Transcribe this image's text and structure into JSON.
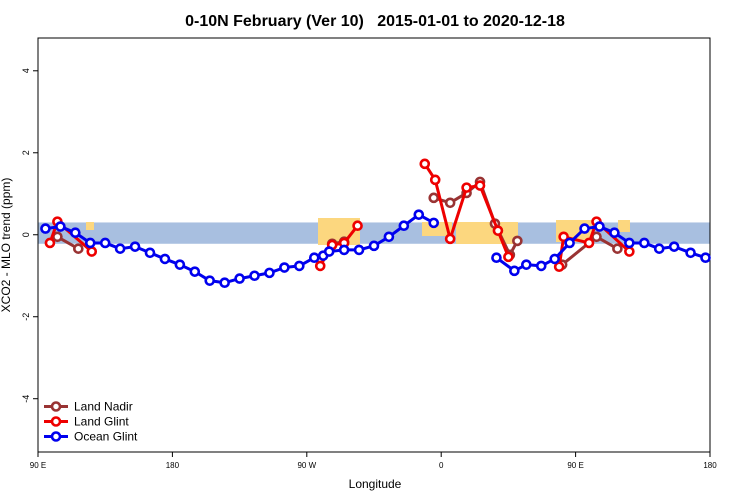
{
  "chart_data": {
    "type": "line",
    "title": "0-10N February (Ver 10)   2015-01-01 to 2020-12-18",
    "x_label": "Longitude",
    "y_label": "XCO2 - MLO trend (ppm)",
    "xlim": [
      90,
      540
    ],
    "ylim": [
      -5.3,
      4.8
    ],
    "xticks": [
      {
        "value": 90,
        "label": "90 E"
      },
      180,
      {
        "value": 270,
        "label": "90 W"
      },
      {
        "value": 360,
        "label": "0"
      },
      {
        "value": 450,
        "label": "90 E"
      },
      {
        "value": 540,
        "label": "180"
      }
    ],
    "yticks": [
      -4,
      -2,
      0,
      2,
      4
    ],
    "band": [
      -0.22,
      0.3
    ],
    "band_color": "#a8bfe0",
    "legend_position": "bottom-left",
    "series": [
      {
        "name": "Land Nadir",
        "color": "#993333",
        "x": [
          103,
          117,
          null,
          287,
          295,
          null,
          355,
          366,
          377,
          386,
          396,
          406,
          411,
          null,
          441,
          464,
          478
        ],
        "values": [
          -0.05,
          -0.34,
          null,
          -0.22,
          -0.17,
          null,
          0.9,
          0.78,
          1.02,
          1.29,
          0.27,
          -0.49,
          -0.15,
          null,
          -0.73,
          -0.05,
          -0.34
        ]
      },
      {
        "name": "Land Glint",
        "color": "#ee0000",
        "x": [
          98,
          103,
          126,
          null,
          279,
          287,
          295,
          304,
          null,
          349,
          356,
          366,
          377,
          386,
          398,
          405,
          null,
          439,
          442,
          459,
          464,
          486
        ],
        "values": [
          -0.2,
          0.32,
          -0.41,
          null,
          -0.76,
          -0.25,
          -0.2,
          0.22,
          null,
          1.73,
          1.34,
          -0.1,
          1.15,
          1.2,
          0.1,
          -0.54,
          null,
          -0.78,
          -0.05,
          -0.2,
          0.32,
          -0.41
        ]
      },
      {
        "name": "Ocean Glint",
        "color": "#0000ee",
        "x": [
          95,
          105,
          115,
          125,
          135,
          145,
          155,
          165,
          175,
          185,
          195,
          205,
          215,
          225,
          235,
          245,
          255,
          265,
          275,
          281,
          285,
          295,
          305,
          315,
          325,
          335,
          345,
          355,
          null,
          397,
          409,
          417,
          427,
          436,
          446,
          456,
          466,
          476,
          486,
          496,
          506,
          516,
          527,
          537
        ],
        "values": [
          0.15,
          0.2,
          0.05,
          -0.2,
          -0.2,
          -0.34,
          -0.29,
          -0.44,
          -0.59,
          -0.73,
          -0.9,
          -1.12,
          -1.17,
          -1.07,
          -1.0,
          -0.93,
          -0.8,
          -0.76,
          -0.56,
          -0.51,
          -0.41,
          -0.37,
          -0.37,
          -0.27,
          -0.05,
          0.22,
          0.49,
          0.29,
          null,
          -0.56,
          -0.88,
          -0.73,
          -0.76,
          -0.59,
          -0.2,
          0.15,
          0.2,
          0.05,
          -0.2,
          -0.2,
          -0.34,
          -0.29,
          -0.44,
          -0.56
        ]
      }
    ]
  }
}
